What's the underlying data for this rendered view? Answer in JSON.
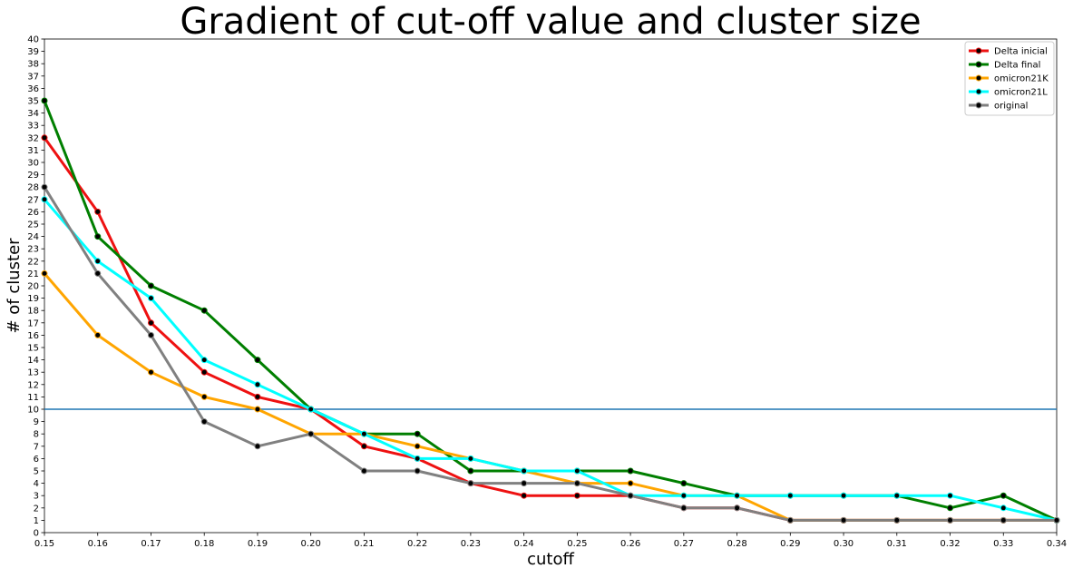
{
  "chart_data": {
    "type": "line",
    "title": "Gradient of cut-off value and cluster size",
    "xlabel": "cutoff",
    "ylabel": "# of cluster",
    "x": [
      0.15,
      0.16,
      0.17,
      0.18,
      0.19,
      0.2,
      0.21,
      0.22,
      0.23,
      0.24,
      0.25,
      0.26,
      0.27,
      0.28,
      0.29,
      0.3,
      0.31,
      0.32,
      0.33,
      0.34
    ],
    "x_tick_labels": [
      "0.15",
      "0.16",
      "0.17",
      "0.18",
      "0.19",
      "0.20",
      "0.21",
      "0.22",
      "0.23",
      "0.24",
      "0.25",
      "0.26",
      "0.27",
      "0.28",
      "0.29",
      "0.30",
      "0.31",
      "0.32",
      "0.33",
      "0.34"
    ],
    "xlim": [
      0.15,
      0.34
    ],
    "ylim": [
      0,
      40
    ],
    "y_tick_labels": [
      "0",
      "1",
      "2",
      "3",
      "4",
      "5",
      "6",
      "7",
      "8",
      "9",
      "10",
      "11",
      "12",
      "13",
      "14",
      "15",
      "16",
      "17",
      "18",
      "19",
      "20",
      "21",
      "22",
      "23",
      "24",
      "25",
      "26",
      "27",
      "28",
      "29",
      "30",
      "31",
      "32",
      "33",
      "34",
      "35",
      "36",
      "37",
      "38",
      "39",
      "40"
    ],
    "grid": false,
    "legend_position": "top-right",
    "reference_line": {
      "orientation": "horizontal",
      "y": 10,
      "color": "#1f77b4"
    },
    "marker_color": "#000000",
    "series": [
      {
        "name": "Delta inicial",
        "color": "#ee1111",
        "values": [
          32,
          26,
          17,
          13,
          11,
          10,
          7,
          6,
          4,
          3,
          3,
          3,
          2,
          2,
          1,
          1,
          1,
          1,
          1,
          1
        ]
      },
      {
        "name": "Delta final",
        "color": "#007f00",
        "values": [
          35,
          24,
          20,
          18,
          14,
          10,
          8,
          8,
          5,
          5,
          5,
          5,
          4,
          3,
          3,
          3,
          3,
          2,
          3,
          1
        ]
      },
      {
        "name": "omicron21K",
        "color": "#ffa500",
        "values": [
          21,
          16,
          13,
          11,
          10,
          8,
          8,
          7,
          6,
          5,
          4,
          4,
          3,
          3,
          1,
          1,
          1,
          1,
          1,
          1
        ]
      },
      {
        "name": "omicron21L",
        "color": "#00ffff",
        "values": [
          27,
          22,
          19,
          14,
          12,
          10,
          8,
          6,
          6,
          5,
          5,
          3,
          3,
          3,
          3,
          3,
          3,
          3,
          2,
          1
        ]
      },
      {
        "name": "original",
        "color": "#808080",
        "values": [
          28,
          21,
          16,
          9,
          7,
          8,
          5,
          5,
          4,
          4,
          4,
          3,
          2,
          2,
          1,
          1,
          1,
          1,
          1,
          1
        ]
      }
    ]
  }
}
